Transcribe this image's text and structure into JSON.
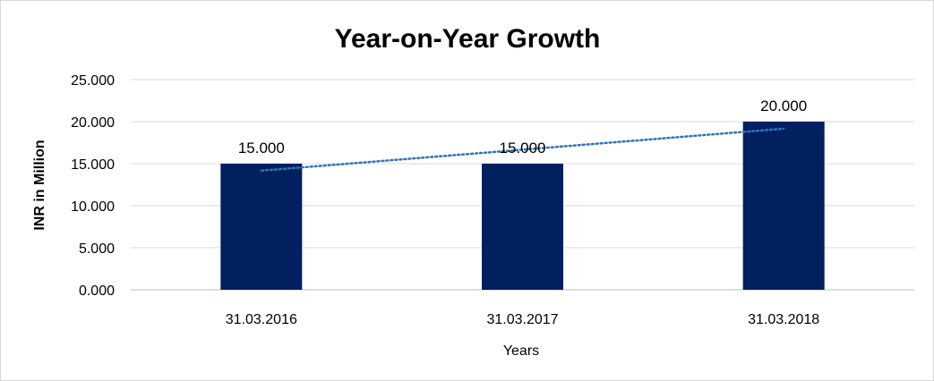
{
  "chart_data": {
    "type": "bar",
    "title": "Year-on-Year Growth",
    "xlabel": "Years",
    "ylabel": "INR in Million",
    "categories": [
      "31.03.2016",
      "31.03.2017",
      "31.03.2018"
    ],
    "values": [
      15,
      15,
      20
    ],
    "data_labels": [
      "15.000",
      "15.000",
      "20.000"
    ],
    "ylim": [
      0,
      25
    ],
    "y_ticks": [
      0,
      5,
      10,
      15,
      20,
      25
    ],
    "y_tick_labels": [
      "0.000",
      "5.000",
      "10.000",
      "15.000",
      "20.000",
      "25.000"
    ],
    "bar_color": "#002060",
    "trendline": {
      "type": "linear",
      "style": "dotted",
      "color": "#2e75b6"
    },
    "grid": true,
    "legend": false
  }
}
